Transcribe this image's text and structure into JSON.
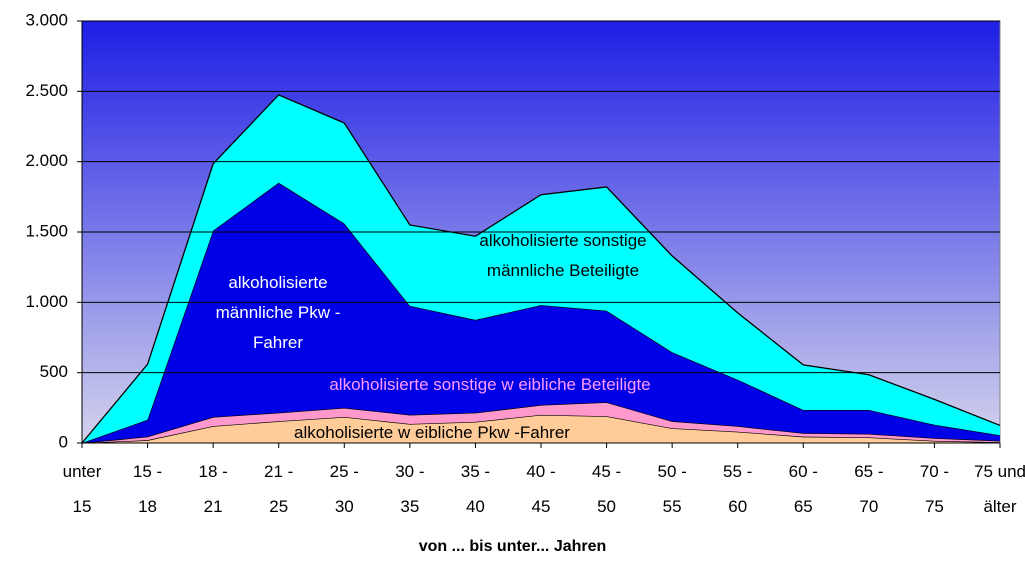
{
  "chart_data": {
    "type": "area",
    "x_label": "von ... bis unter... Jahren",
    "categories": [
      "unter 15",
      "15 - 18",
      "18 - 21",
      "21 - 25",
      "25 - 30",
      "30 - 35",
      "35 - 40",
      "40 - 45",
      "45 - 50",
      "50 - 55",
      "55 - 60",
      "60 - 65",
      "65 - 70",
      "70 - 75",
      "75 und älter"
    ],
    "series": [
      {
        "name": "alkoholisierte w eibliche Pkw -Fahrer",
        "color": "#FFCC99",
        "values": [
          0,
          20,
          120,
          155,
          185,
          135,
          150,
          200,
          190,
          105,
          80,
          45,
          40,
          15,
          5
        ]
      },
      {
        "name": "alkoholisierte sonstige w eibliche Beteiligte",
        "color": "#FF99CC",
        "values": [
          0,
          25,
          65,
          60,
          65,
          65,
          65,
          70,
          100,
          50,
          40,
          25,
          25,
          20,
          10
        ]
      },
      {
        "name": "alkoholisierte männliche Pkw -Fahrer",
        "color": "#0000E6",
        "values": [
          0,
          120,
          1325,
          1635,
          1310,
          775,
          660,
          710,
          650,
          490,
          330,
          165,
          170,
          95,
          40
        ]
      },
      {
        "name": "alkoholisierte sonstige männliche Beteiligte",
        "color": "#00FFFF",
        "values": [
          0,
          395,
          475,
          625,
          715,
          575,
          595,
          785,
          880,
          685,
          475,
          320,
          250,
          180,
          70
        ]
      }
    ],
    "ylim": [
      0,
      3000
    ],
    "yticks": [
      0,
      500,
      {
        "value": 1000,
        "label": "1.000"
      },
      {
        "value": 1500,
        "label": "1.500"
      },
      {
        "value": 2000,
        "label": "2.000"
      },
      {
        "value": 2500,
        "label": "2.500"
      },
      {
        "value": 3000,
        "label": "3.000"
      }
    ],
    "grid": true,
    "stacked": true
  }
}
